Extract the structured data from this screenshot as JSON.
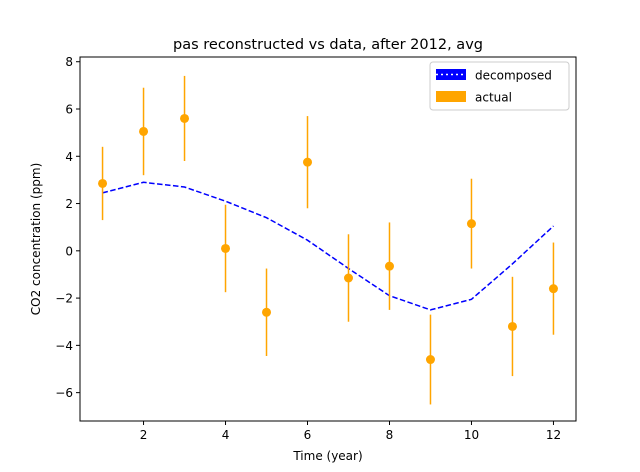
{
  "chart_data": {
    "type": "line",
    "title": "pas reconstructed vs data, after 2012, avg",
    "xlabel": "Time (year)",
    "ylabel": "CO2 concentration (ppm)",
    "xlim": [
      0.45,
      12.55
    ],
    "ylim": [
      -7.2,
      8.2
    ],
    "xticks": [
      2,
      4,
      6,
      8,
      10,
      12
    ],
    "yticks": [
      -6,
      -4,
      -2,
      0,
      2,
      4,
      6,
      8
    ],
    "xtick_labels": [
      "2",
      "4",
      "6",
      "8",
      "10",
      "12"
    ],
    "ytick_labels": [
      "−6",
      "−4",
      "−2",
      "0",
      "2",
      "4",
      "6",
      "8"
    ],
    "grid": false,
    "legend_position": "top-right",
    "series": [
      {
        "name": "decomposed",
        "style": "dashed-line",
        "color": "#0000ff",
        "x": [
          1,
          2,
          3,
          4,
          5,
          6,
          7,
          8,
          9,
          10,
          11,
          12
        ],
        "y": [
          2.45,
          2.9,
          2.7,
          2.1,
          1.4,
          0.45,
          -0.75,
          -1.9,
          -2.5,
          -2.05,
          -0.55,
          1.05
        ]
      },
      {
        "name": "actual",
        "style": "errorbar-points",
        "color": "#ffa500",
        "x": [
          1,
          2,
          3,
          4,
          5,
          6,
          7,
          8,
          9,
          10,
          11,
          12
        ],
        "y": [
          2.85,
          5.05,
          5.6,
          0.1,
          -2.6,
          3.75,
          -1.15,
          -0.65,
          -4.6,
          1.15,
          -3.2,
          -1.6
        ],
        "yerr": [
          1.55,
          1.85,
          1.8,
          1.85,
          1.85,
          1.95,
          1.85,
          1.85,
          1.9,
          1.9,
          2.1,
          1.95
        ]
      }
    ]
  }
}
